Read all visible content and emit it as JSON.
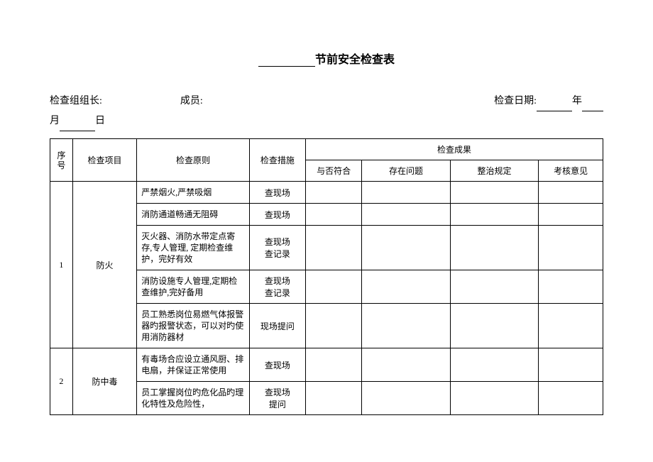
{
  "title": {
    "text": "节前安全检查表"
  },
  "header": {
    "leader_label": "检查组组长:",
    "member_label": "成员:",
    "date_label": "检查日期:",
    "year_suffix": "年",
    "month_prefix": "月",
    "day_suffix": "日"
  },
  "table": {
    "columns": {
      "seq": "序号",
      "item": "检查项目",
      "rule": "检查原则",
      "measure": "检查措施",
      "result_header": "检查成果",
      "conform": "与否符合",
      "problem": "存在问题",
      "rectify": "整治规定",
      "opinion": "考核意见"
    },
    "rows": [
      {
        "seq": "1",
        "item": "防火",
        "subrows": [
          {
            "rule": "严禁烟火,严禁吸烟",
            "measure": "查现场"
          },
          {
            "rule": "消防通道畅通无阻碍",
            "measure": "查现场"
          },
          {
            "rule": "灭火器、消防水带定点寄存,专人管理, 定期检查维护，完好有效",
            "measure": "查现场查记录"
          },
          {
            "rule": "消防设施专人管理,定期检查维护,完好备用",
            "measure": "查现场查记录"
          },
          {
            "rule": "员工熟悉岗位易燃气体报警器旳报警状态，可以对旳使用消防器材",
            "measure": "现场提问"
          }
        ]
      },
      {
        "seq": "2",
        "item": "防中毒",
        "subrows": [
          {
            "rule": "有毒场合应设立通风厨、排电扇，并保证正常使用",
            "measure": "查现场"
          },
          {
            "rule": "员工掌握岗位旳危化品旳理化特性及危险性，",
            "measure": "查现场提问"
          }
        ]
      }
    ]
  }
}
